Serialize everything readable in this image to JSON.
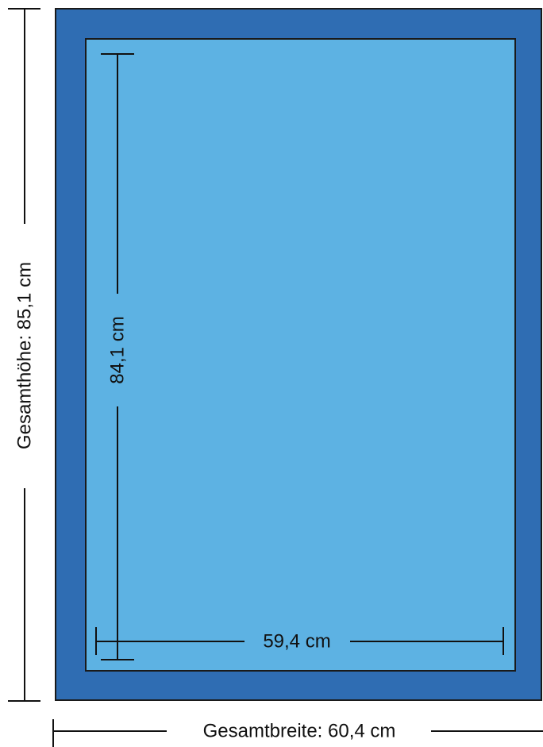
{
  "colors": {
    "outer_frame": "#2F6DB3",
    "inner_panel": "#5DB2E3",
    "outline": "#1A1A1A",
    "dimension_line": "#111111",
    "background": "#FFFFFF"
  },
  "dimensions": {
    "total_height": {
      "label": "Gesamthöhe: 85,1 cm",
      "value": 85.1,
      "unit": "cm"
    },
    "total_width": {
      "label": "Gesamtbreite: 60,4 cm",
      "value": 60.4,
      "unit": "cm"
    },
    "inner_height": {
      "label": "84,1 cm",
      "value": 84.1,
      "unit": "cm"
    },
    "inner_width": {
      "label": "59,4 cm",
      "value": 59.4,
      "unit": "cm"
    }
  }
}
